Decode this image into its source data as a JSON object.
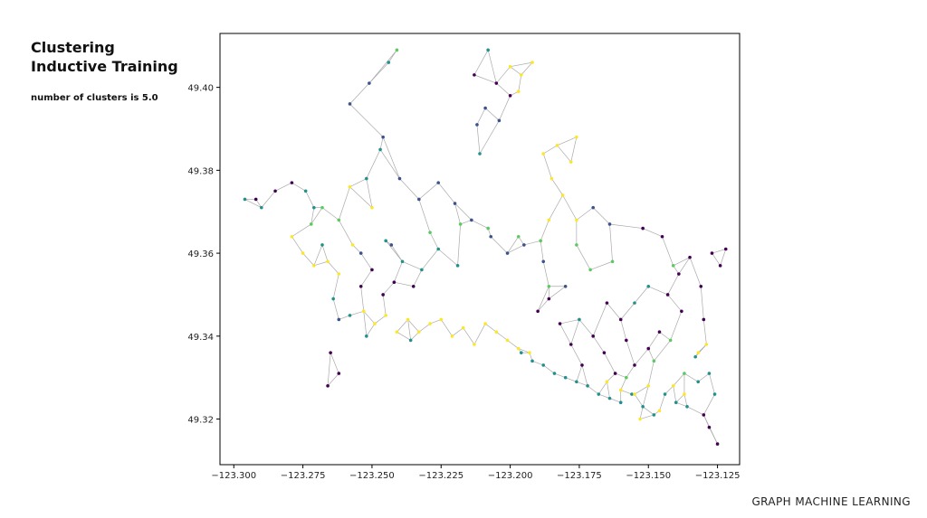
{
  "slide": {
    "title_line1": "Clustering",
    "title_line2": "Inductive Training",
    "subtitle": "number of clusters is 5.0",
    "footer": "GRAPH MACHINE LEARNING"
  },
  "chart_data": {
    "type": "scatter",
    "title": "",
    "xlabel": "",
    "ylabel": "",
    "xlim": [
      -123.305,
      -123.117
    ],
    "ylim": [
      49.309,
      49.413
    ],
    "grid": false,
    "x_ticks": [
      -123.3,
      -123.275,
      -123.25,
      -123.225,
      -123.2,
      -123.175,
      -123.15,
      -123.125
    ],
    "x_tick_labels": [
      "−123.300",
      "−123.275",
      "−123.250",
      "−123.225",
      "−123.200",
      "−123.175",
      "−123.150",
      "−123.125"
    ],
    "y_ticks": [
      49.32,
      49.34,
      49.36,
      49.38,
      49.4
    ],
    "y_tick_labels": [
      "49.32",
      "49.34",
      "49.36",
      "49.38",
      "49.40"
    ],
    "edge_color": "#aaaaaa",
    "cluster_colors": [
      "#440154",
      "#3b528b",
      "#21918c",
      "#5ec962",
      "#fde725"
    ],
    "clusters": [
      {
        "cluster": 0,
        "color": "#440154",
        "points": [
          [
            -123.292,
            49.373
          ],
          [
            -123.285,
            49.375
          ],
          [
            -123.279,
            49.377
          ],
          [
            -123.265,
            49.336
          ],
          [
            -123.262,
            49.331
          ],
          [
            -123.266,
            49.328
          ],
          [
            -123.254,
            49.352
          ],
          [
            -123.25,
            49.356
          ],
          [
            -123.246,
            49.35
          ],
          [
            -123.242,
            49.353
          ],
          [
            -123.19,
            49.346
          ],
          [
            -123.186,
            49.349
          ],
          [
            -123.182,
            49.343
          ],
          [
            -123.178,
            49.338
          ],
          [
            -123.174,
            49.333
          ],
          [
            -123.17,
            49.34
          ],
          [
            -123.166,
            49.336
          ],
          [
            -123.162,
            49.331
          ],
          [
            -123.158,
            49.339
          ],
          [
            -123.155,
            49.333
          ],
          [
            -123.15,
            49.337
          ],
          [
            -123.146,
            49.341
          ],
          [
            -123.143,
            49.35
          ],
          [
            -123.139,
            49.355
          ],
          [
            -123.135,
            49.359
          ],
          [
            -123.131,
            49.352
          ],
          [
            -123.127,
            49.36
          ],
          [
            -123.124,
            49.357
          ],
          [
            -123.122,
            49.361
          ],
          [
            -123.13,
            49.344
          ],
          [
            -123.138,
            49.346
          ],
          [
            -123.145,
            49.364
          ],
          [
            -123.152,
            49.366
          ],
          [
            -123.2,
            49.398
          ],
          [
            -123.205,
            49.401
          ],
          [
            -123.213,
            49.403
          ],
          [
            -123.165,
            49.348
          ],
          [
            -123.16,
            49.344
          ],
          [
            -123.128,
            49.318
          ],
          [
            -123.125,
            49.314
          ],
          [
            -123.13,
            49.321
          ],
          [
            -123.235,
            49.352
          ]
        ]
      },
      {
        "cluster": 1,
        "color": "#3b528b",
        "points": [
          [
            -123.258,
            49.396
          ],
          [
            -123.251,
            49.401
          ],
          [
            -123.246,
            49.388
          ],
          [
            -123.24,
            49.378
          ],
          [
            -123.233,
            49.373
          ],
          [
            -123.226,
            49.377
          ],
          [
            -123.22,
            49.372
          ],
          [
            -123.214,
            49.368
          ],
          [
            -123.207,
            49.364
          ],
          [
            -123.201,
            49.36
          ],
          [
            -123.195,
            49.362
          ],
          [
            -123.188,
            49.358
          ],
          [
            -123.212,
            49.391
          ],
          [
            -123.209,
            49.395
          ],
          [
            -123.204,
            49.392
          ],
          [
            -123.254,
            49.36
          ],
          [
            -123.243,
            49.362
          ],
          [
            -123.17,
            49.371
          ],
          [
            -123.164,
            49.367
          ],
          [
            -123.18,
            49.352
          ],
          [
            -123.262,
            49.344
          ]
        ]
      },
      {
        "cluster": 2,
        "color": "#21918c",
        "points": [
          [
            -123.296,
            49.373
          ],
          [
            -123.29,
            49.371
          ],
          [
            -123.274,
            49.375
          ],
          [
            -123.271,
            49.371
          ],
          [
            -123.264,
            49.349
          ],
          [
            -123.258,
            49.345
          ],
          [
            -123.252,
            49.34
          ],
          [
            -123.245,
            49.363
          ],
          [
            -123.239,
            49.358
          ],
          [
            -123.232,
            49.356
          ],
          [
            -123.226,
            49.361
          ],
          [
            -123.219,
            49.357
          ],
          [
            -123.196,
            49.336
          ],
          [
            -123.192,
            49.334
          ],
          [
            -123.188,
            49.333
          ],
          [
            -123.184,
            49.331
          ],
          [
            -123.18,
            49.33
          ],
          [
            -123.176,
            49.329
          ],
          [
            -123.172,
            49.328
          ],
          [
            -123.168,
            49.326
          ],
          [
            -123.164,
            49.325
          ],
          [
            -123.16,
            49.324
          ],
          [
            -123.156,
            49.326
          ],
          [
            -123.152,
            49.323
          ],
          [
            -123.148,
            49.321
          ],
          [
            -123.144,
            49.326
          ],
          [
            -123.14,
            49.324
          ],
          [
            -123.136,
            49.323
          ],
          [
            -123.132,
            49.329
          ],
          [
            -123.128,
            49.331
          ],
          [
            -123.126,
            49.326
          ],
          [
            -123.133,
            49.335
          ],
          [
            -123.155,
            49.348
          ],
          [
            -123.15,
            49.352
          ],
          [
            -123.175,
            49.344
          ],
          [
            -123.244,
            49.406
          ],
          [
            -123.252,
            49.378
          ],
          [
            -123.247,
            49.385
          ],
          [
            -123.208,
            49.409
          ],
          [
            -123.211,
            49.384
          ],
          [
            -123.268,
            49.362
          ],
          [
            -123.236,
            49.339
          ]
        ]
      },
      {
        "cluster": 3,
        "color": "#5ec962",
        "points": [
          [
            -123.268,
            49.371
          ],
          [
            -123.272,
            49.367
          ],
          [
            -123.229,
            49.365
          ],
          [
            -123.218,
            49.367
          ],
          [
            -123.208,
            49.366
          ],
          [
            -123.197,
            49.364
          ],
          [
            -123.189,
            49.363
          ],
          [
            -123.176,
            49.362
          ],
          [
            -123.163,
            49.358
          ],
          [
            -123.141,
            49.357
          ],
          [
            -123.137,
            49.331
          ],
          [
            -123.148,
            49.334
          ],
          [
            -123.158,
            49.33
          ],
          [
            -123.142,
            49.339
          ],
          [
            -123.171,
            49.356
          ],
          [
            -123.241,
            49.409
          ],
          [
            -123.262,
            49.368
          ],
          [
            -123.186,
            49.352
          ]
        ]
      },
      {
        "cluster": 4,
        "color": "#fde725",
        "points": [
          [
            -123.279,
            49.364
          ],
          [
            -123.275,
            49.36
          ],
          [
            -123.271,
            49.357
          ],
          [
            -123.266,
            49.358
          ],
          [
            -123.262,
            49.355
          ],
          [
            -123.257,
            49.362
          ],
          [
            -123.253,
            49.346
          ],
          [
            -123.249,
            49.343
          ],
          [
            -123.245,
            49.345
          ],
          [
            -123.241,
            49.341
          ],
          [
            -123.237,
            49.344
          ],
          [
            -123.233,
            49.341
          ],
          [
            -123.229,
            49.343
          ],
          [
            -123.225,
            49.344
          ],
          [
            -123.221,
            49.34
          ],
          [
            -123.217,
            49.342
          ],
          [
            -123.213,
            49.338
          ],
          [
            -123.209,
            49.343
          ],
          [
            -123.205,
            49.341
          ],
          [
            -123.201,
            49.339
          ],
          [
            -123.197,
            49.337
          ],
          [
            -123.193,
            49.336
          ],
          [
            -123.2,
            49.405
          ],
          [
            -123.196,
            49.403
          ],
          [
            -123.192,
            49.406
          ],
          [
            -123.197,
            49.399
          ],
          [
            -123.185,
            49.378
          ],
          [
            -123.181,
            49.374
          ],
          [
            -123.188,
            49.384
          ],
          [
            -123.183,
            49.386
          ],
          [
            -123.178,
            49.382
          ],
          [
            -123.176,
            49.388
          ],
          [
            -123.186,
            49.368
          ],
          [
            -123.165,
            49.329
          ],
          [
            -123.16,
            49.327
          ],
          [
            -123.155,
            49.326
          ],
          [
            -123.15,
            49.328
          ],
          [
            -123.141,
            49.328
          ],
          [
            -123.137,
            49.326
          ],
          [
            -123.146,
            49.322
          ],
          [
            -123.153,
            49.32
          ],
          [
            -123.132,
            49.336
          ],
          [
            -123.129,
            49.338
          ],
          [
            -123.258,
            49.376
          ],
          [
            -123.25,
            49.371
          ],
          [
            -123.176,
            49.368
          ]
        ]
      }
    ]
  }
}
